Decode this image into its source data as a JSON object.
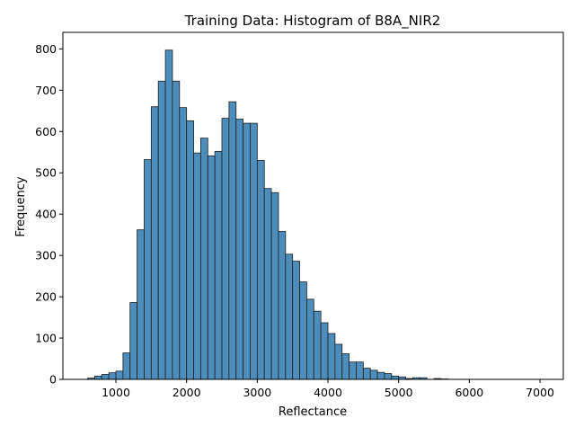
{
  "chart_data": {
    "type": "bar",
    "title": "Training Data: Histogram of B8A_NIR2",
    "xlabel": "Reflectance",
    "ylabel": "Frequency",
    "xlim": [
      250,
      7330
    ],
    "ylim": [
      0,
      840
    ],
    "x_ticks": [
      1000,
      2000,
      3000,
      4000,
      5000,
      6000,
      7000
    ],
    "y_ticks": [
      0,
      100,
      200,
      300,
      400,
      500,
      600,
      700,
      800
    ],
    "bin_start": 600,
    "bin_width": 100,
    "values": [
      3,
      8,
      12,
      16,
      20,
      64,
      186,
      362,
      532,
      660,
      722,
      797,
      722,
      658,
      626,
      548,
      584,
      541,
      552,
      632,
      672,
      630,
      620,
      620,
      530,
      462,
      452,
      358,
      303,
      286,
      236,
      194,
      165,
      137,
      111,
      85,
      62,
      42,
      42,
      27,
      22,
      17,
      14,
      8,
      6,
      2,
      4,
      4,
      0,
      2,
      1
    ],
    "bar_color": "#4c8dbb",
    "edge_color": "#1f1f1f",
    "grid": false,
    "legend": "none"
  }
}
